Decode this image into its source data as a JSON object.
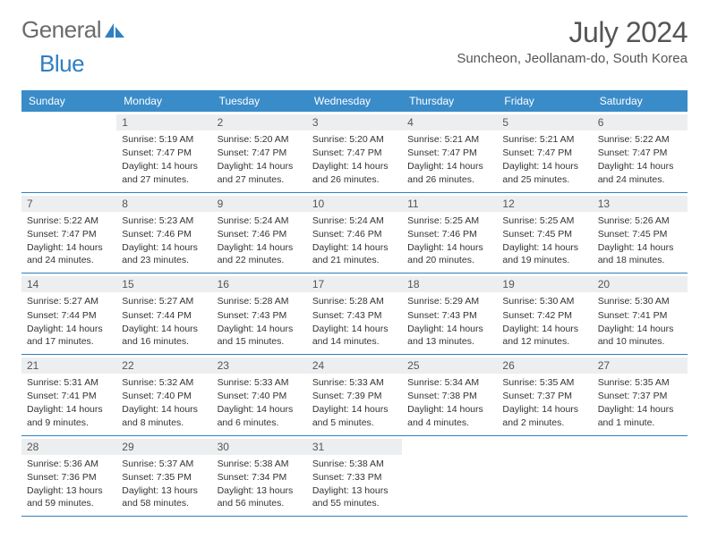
{
  "brand": {
    "word1": "General",
    "word2": "Blue"
  },
  "title": "July 2024",
  "location": "Suncheon, Jeollanam-do, South Korea",
  "colors": {
    "header_bg": "#3a8cc9",
    "header_text": "#ffffff",
    "rule": "#2f7fc2",
    "daynum_bg": "#eceef0",
    "text": "#333333",
    "title_text": "#555555"
  },
  "weekdays": [
    "Sunday",
    "Monday",
    "Tuesday",
    "Wednesday",
    "Thursday",
    "Friday",
    "Saturday"
  ],
  "weeks": [
    [
      {
        "n": "",
        "sunrise": "",
        "sunset": "",
        "daylight": ""
      },
      {
        "n": "1",
        "sunrise": "Sunrise: 5:19 AM",
        "sunset": "Sunset: 7:47 PM",
        "daylight": "Daylight: 14 hours and 27 minutes."
      },
      {
        "n": "2",
        "sunrise": "Sunrise: 5:20 AM",
        "sunset": "Sunset: 7:47 PM",
        "daylight": "Daylight: 14 hours and 27 minutes."
      },
      {
        "n": "3",
        "sunrise": "Sunrise: 5:20 AM",
        "sunset": "Sunset: 7:47 PM",
        "daylight": "Daylight: 14 hours and 26 minutes."
      },
      {
        "n": "4",
        "sunrise": "Sunrise: 5:21 AM",
        "sunset": "Sunset: 7:47 PM",
        "daylight": "Daylight: 14 hours and 26 minutes."
      },
      {
        "n": "5",
        "sunrise": "Sunrise: 5:21 AM",
        "sunset": "Sunset: 7:47 PM",
        "daylight": "Daylight: 14 hours and 25 minutes."
      },
      {
        "n": "6",
        "sunrise": "Sunrise: 5:22 AM",
        "sunset": "Sunset: 7:47 PM",
        "daylight": "Daylight: 14 hours and 24 minutes."
      }
    ],
    [
      {
        "n": "7",
        "sunrise": "Sunrise: 5:22 AM",
        "sunset": "Sunset: 7:47 PM",
        "daylight": "Daylight: 14 hours and 24 minutes."
      },
      {
        "n": "8",
        "sunrise": "Sunrise: 5:23 AM",
        "sunset": "Sunset: 7:46 PM",
        "daylight": "Daylight: 14 hours and 23 minutes."
      },
      {
        "n": "9",
        "sunrise": "Sunrise: 5:24 AM",
        "sunset": "Sunset: 7:46 PM",
        "daylight": "Daylight: 14 hours and 22 minutes."
      },
      {
        "n": "10",
        "sunrise": "Sunrise: 5:24 AM",
        "sunset": "Sunset: 7:46 PM",
        "daylight": "Daylight: 14 hours and 21 minutes."
      },
      {
        "n": "11",
        "sunrise": "Sunrise: 5:25 AM",
        "sunset": "Sunset: 7:46 PM",
        "daylight": "Daylight: 14 hours and 20 minutes."
      },
      {
        "n": "12",
        "sunrise": "Sunrise: 5:25 AM",
        "sunset": "Sunset: 7:45 PM",
        "daylight": "Daylight: 14 hours and 19 minutes."
      },
      {
        "n": "13",
        "sunrise": "Sunrise: 5:26 AM",
        "sunset": "Sunset: 7:45 PM",
        "daylight": "Daylight: 14 hours and 18 minutes."
      }
    ],
    [
      {
        "n": "14",
        "sunrise": "Sunrise: 5:27 AM",
        "sunset": "Sunset: 7:44 PM",
        "daylight": "Daylight: 14 hours and 17 minutes."
      },
      {
        "n": "15",
        "sunrise": "Sunrise: 5:27 AM",
        "sunset": "Sunset: 7:44 PM",
        "daylight": "Daylight: 14 hours and 16 minutes."
      },
      {
        "n": "16",
        "sunrise": "Sunrise: 5:28 AM",
        "sunset": "Sunset: 7:43 PM",
        "daylight": "Daylight: 14 hours and 15 minutes."
      },
      {
        "n": "17",
        "sunrise": "Sunrise: 5:28 AM",
        "sunset": "Sunset: 7:43 PM",
        "daylight": "Daylight: 14 hours and 14 minutes."
      },
      {
        "n": "18",
        "sunrise": "Sunrise: 5:29 AM",
        "sunset": "Sunset: 7:43 PM",
        "daylight": "Daylight: 14 hours and 13 minutes."
      },
      {
        "n": "19",
        "sunrise": "Sunrise: 5:30 AM",
        "sunset": "Sunset: 7:42 PM",
        "daylight": "Daylight: 14 hours and 12 minutes."
      },
      {
        "n": "20",
        "sunrise": "Sunrise: 5:30 AM",
        "sunset": "Sunset: 7:41 PM",
        "daylight": "Daylight: 14 hours and 10 minutes."
      }
    ],
    [
      {
        "n": "21",
        "sunrise": "Sunrise: 5:31 AM",
        "sunset": "Sunset: 7:41 PM",
        "daylight": "Daylight: 14 hours and 9 minutes."
      },
      {
        "n": "22",
        "sunrise": "Sunrise: 5:32 AM",
        "sunset": "Sunset: 7:40 PM",
        "daylight": "Daylight: 14 hours and 8 minutes."
      },
      {
        "n": "23",
        "sunrise": "Sunrise: 5:33 AM",
        "sunset": "Sunset: 7:40 PM",
        "daylight": "Daylight: 14 hours and 6 minutes."
      },
      {
        "n": "24",
        "sunrise": "Sunrise: 5:33 AM",
        "sunset": "Sunset: 7:39 PM",
        "daylight": "Daylight: 14 hours and 5 minutes."
      },
      {
        "n": "25",
        "sunrise": "Sunrise: 5:34 AM",
        "sunset": "Sunset: 7:38 PM",
        "daylight": "Daylight: 14 hours and 4 minutes."
      },
      {
        "n": "26",
        "sunrise": "Sunrise: 5:35 AM",
        "sunset": "Sunset: 7:37 PM",
        "daylight": "Daylight: 14 hours and 2 minutes."
      },
      {
        "n": "27",
        "sunrise": "Sunrise: 5:35 AM",
        "sunset": "Sunset: 7:37 PM",
        "daylight": "Daylight: 14 hours and 1 minute."
      }
    ],
    [
      {
        "n": "28",
        "sunrise": "Sunrise: 5:36 AM",
        "sunset": "Sunset: 7:36 PM",
        "daylight": "Daylight: 13 hours and 59 minutes."
      },
      {
        "n": "29",
        "sunrise": "Sunrise: 5:37 AM",
        "sunset": "Sunset: 7:35 PM",
        "daylight": "Daylight: 13 hours and 58 minutes."
      },
      {
        "n": "30",
        "sunrise": "Sunrise: 5:38 AM",
        "sunset": "Sunset: 7:34 PM",
        "daylight": "Daylight: 13 hours and 56 minutes."
      },
      {
        "n": "31",
        "sunrise": "Sunrise: 5:38 AM",
        "sunset": "Sunset: 7:33 PM",
        "daylight": "Daylight: 13 hours and 55 minutes."
      },
      {
        "n": "",
        "sunrise": "",
        "sunset": "",
        "daylight": ""
      },
      {
        "n": "",
        "sunrise": "",
        "sunset": "",
        "daylight": ""
      },
      {
        "n": "",
        "sunrise": "",
        "sunset": "",
        "daylight": ""
      }
    ]
  ]
}
